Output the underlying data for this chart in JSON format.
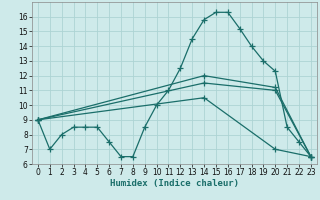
{
  "xlabel": "Humidex (Indice chaleur)",
  "bg_color": "#ceeaea",
  "grid_color": "#add4d4",
  "line_color": "#1a6e6a",
  "xlim": [
    -0.5,
    23.5
  ],
  "ylim": [
    6,
    17
  ],
  "xticks": [
    0,
    1,
    2,
    3,
    4,
    5,
    6,
    7,
    8,
    9,
    10,
    11,
    12,
    13,
    14,
    15,
    16,
    17,
    18,
    19,
    20,
    21,
    22,
    23
  ],
  "yticks": [
    6,
    7,
    8,
    9,
    10,
    11,
    12,
    13,
    14,
    15,
    16
  ],
  "series": [
    {
      "x": [
        0,
        1,
        2,
        3,
        4,
        5,
        6,
        7,
        8,
        9,
        10,
        11,
        12,
        13,
        14,
        15,
        16,
        17,
        18,
        19,
        20,
        21,
        22,
        23
      ],
      "y": [
        9,
        7,
        8,
        8.5,
        8.5,
        8.5,
        7.5,
        6.5,
        6.5,
        8.5,
        10,
        11,
        12.5,
        14.5,
        15.8,
        16.3,
        16.3,
        15.2,
        14,
        13,
        12.3,
        8.5,
        7.5,
        6.5
      ]
    },
    {
      "x": [
        0,
        14,
        20,
        23
      ],
      "y": [
        9,
        12,
        11.2,
        6.5
      ]
    },
    {
      "x": [
        0,
        14,
        20,
        23
      ],
      "y": [
        9,
        11.5,
        11.0,
        6.5
      ]
    },
    {
      "x": [
        0,
        14,
        20,
        23
      ],
      "y": [
        9,
        10.5,
        7.0,
        6.5
      ]
    }
  ],
  "marker": "+",
  "markersize": 4,
  "linewidth": 0.9,
  "tick_fontsize": 5.5,
  "xlabel_fontsize": 6.5
}
